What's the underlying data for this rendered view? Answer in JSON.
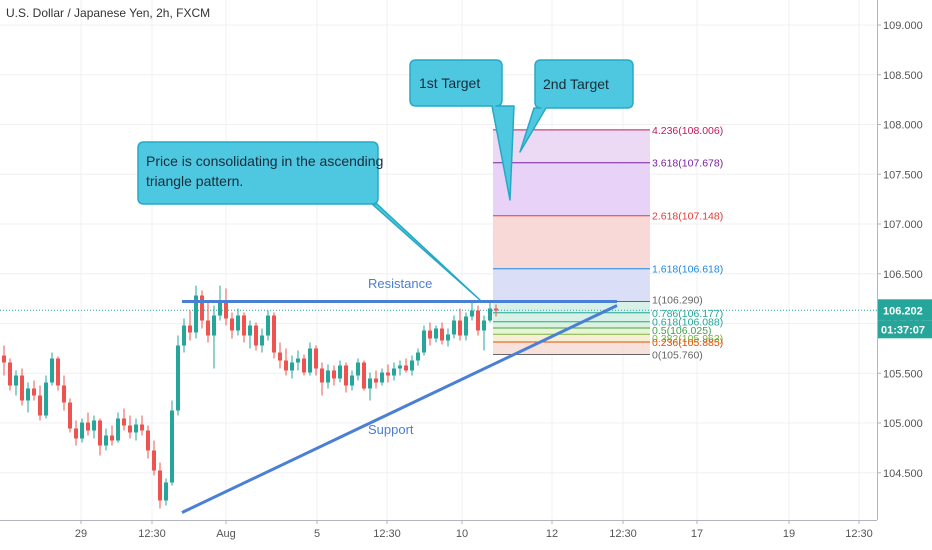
{
  "header": {
    "symbol_title": "U.S. Dollar / Japanese Yen, 2h, FXCM"
  },
  "colors": {
    "up": "#26a69a",
    "down": "#ef5350",
    "trendline": "#4a7fd6",
    "callout_fill": "#4dc8e0",
    "callout_stroke": "#26a9c4",
    "price_tag": "#26a69a",
    "price_line": "#26a69a",
    "grid": "#eef0f3",
    "axis_text": "#555555"
  },
  "chart_data": {
    "type": "candlestick",
    "title": "U.S. Dollar / Japanese Yen, 2h, FXCM",
    "ylim": [
      104.2,
      109.3
    ],
    "y_ticks": [
      "109.000",
      "108.500",
      "108.000",
      "107.500",
      "107.000",
      "106.500",
      "106.000",
      "105.500",
      "105.000",
      "104.500"
    ],
    "x_ticks": [
      "29",
      "12:30",
      "Aug",
      "5",
      "12:30",
      "10",
      "12",
      "12:30",
      "17",
      "19",
      "12:30"
    ],
    "last_price": "106.202",
    "countdown": "01:37:07",
    "grid": true,
    "candles": [
      [
        105.75,
        105.85,
        105.55,
        105.68
      ],
      [
        105.68,
        105.72,
        105.4,
        105.45
      ],
      [
        105.45,
        105.6,
        105.35,
        105.55
      ],
      [
        105.55,
        105.62,
        105.25,
        105.3
      ],
      [
        105.3,
        105.48,
        105.18,
        105.42
      ],
      [
        105.42,
        105.5,
        105.3,
        105.35
      ],
      [
        105.35,
        105.45,
        105.1,
        105.15
      ],
      [
        105.15,
        105.55,
        105.12,
        105.48
      ],
      [
        105.48,
        105.78,
        105.45,
        105.72
      ],
      [
        105.72,
        105.74,
        105.4,
        105.45
      ],
      [
        105.45,
        105.55,
        105.2,
        105.28
      ],
      [
        105.28,
        105.32,
        104.98,
        105.02
      ],
      [
        105.02,
        105.1,
        104.85,
        104.92
      ],
      [
        104.92,
        105.12,
        104.88,
        105.08
      ],
      [
        105.08,
        105.18,
        104.95,
        105.0
      ],
      [
        105.0,
        105.15,
        104.92,
        105.1
      ],
      [
        105.1,
        105.12,
        104.75,
        104.85
      ],
      [
        104.85,
        105.02,
        104.8,
        104.95
      ],
      [
        104.95,
        105.05,
        104.85,
        104.9
      ],
      [
        104.9,
        105.18,
        104.88,
        105.12
      ],
      [
        105.12,
        105.22,
        105.0,
        105.05
      ],
      [
        105.05,
        105.15,
        104.92,
        104.98
      ],
      [
        104.98,
        105.12,
        104.9,
        105.06
      ],
      [
        105.06,
        105.15,
        104.95,
        105.0
      ],
      [
        105.0,
        105.05,
        104.72,
        104.8
      ],
      [
        104.8,
        104.9,
        104.55,
        104.6
      ],
      [
        104.6,
        104.68,
        104.22,
        104.3
      ],
      [
        104.3,
        104.52,
        104.25,
        104.48
      ],
      [
        104.48,
        105.3,
        104.45,
        105.2
      ],
      [
        105.2,
        105.95,
        105.15,
        105.85
      ],
      [
        105.85,
        106.12,
        105.78,
        106.05
      ],
      [
        106.05,
        106.2,
        105.9,
        105.98
      ],
      [
        105.98,
        106.45,
        105.92,
        106.35
      ],
      [
        106.35,
        106.4,
        106.02,
        106.1
      ],
      [
        106.1,
        106.3,
        105.88,
        105.95
      ],
      [
        105.95,
        106.25,
        105.62,
        106.15
      ],
      [
        106.15,
        106.45,
        106.1,
        106.3
      ],
      [
        106.3,
        106.42,
        106.05,
        106.12
      ],
      [
        106.12,
        106.18,
        105.92,
        106.0
      ],
      [
        106.0,
        106.22,
        105.95,
        106.15
      ],
      [
        106.15,
        106.18,
        105.88,
        105.95
      ],
      [
        105.95,
        106.1,
        105.82,
        106.05
      ],
      [
        106.05,
        106.08,
        105.8,
        105.85
      ],
      [
        105.85,
        106.02,
        105.78,
        105.95
      ],
      [
        105.95,
        106.2,
        105.9,
        106.15
      ],
      [
        106.15,
        106.18,
        105.72,
        105.78
      ],
      [
        105.78,
        105.88,
        105.62,
        105.7
      ],
      [
        105.7,
        105.82,
        105.55,
        105.6
      ],
      [
        105.6,
        105.75,
        105.52,
        105.68
      ],
      [
        105.68,
        105.8,
        105.6,
        105.72
      ],
      [
        105.72,
        105.76,
        105.55,
        105.58
      ],
      [
        105.58,
        105.88,
        105.55,
        105.82
      ],
      [
        105.82,
        105.85,
        105.55,
        105.62
      ],
      [
        105.62,
        105.68,
        105.35,
        105.48
      ],
      [
        105.48,
        105.66,
        105.42,
        105.6
      ],
      [
        105.6,
        105.65,
        105.45,
        105.52
      ],
      [
        105.52,
        105.7,
        105.48,
        105.65
      ],
      [
        105.65,
        105.68,
        105.38,
        105.45
      ],
      [
        105.45,
        105.6,
        105.4,
        105.55
      ],
      [
        105.55,
        105.72,
        105.5,
        105.68
      ],
      [
        105.68,
        105.7,
        105.4,
        105.42
      ],
      [
        105.42,
        105.58,
        105.3,
        105.52
      ],
      [
        105.52,
        105.6,
        105.42,
        105.48
      ],
      [
        105.48,
        105.62,
        105.45,
        105.58
      ],
      [
        105.58,
        105.66,
        105.48,
        105.55
      ],
      [
        105.55,
        105.68,
        105.5,
        105.62
      ],
      [
        105.62,
        105.7,
        105.55,
        105.65
      ],
      [
        105.65,
        105.72,
        105.58,
        105.6
      ],
      [
        105.6,
        105.75,
        105.55,
        105.7
      ],
      [
        105.7,
        105.82,
        105.65,
        105.78
      ],
      [
        105.78,
        106.05,
        105.75,
        106.0
      ],
      [
        106.0,
        106.08,
        105.85,
        105.92
      ],
      [
        105.92,
        106.05,
        105.88,
        106.02
      ],
      [
        106.02,
        106.08,
        105.86,
        105.9
      ],
      [
        105.9,
        106.02,
        105.84,
        105.96
      ],
      [
        105.96,
        106.15,
        105.92,
        106.1
      ],
      [
        106.1,
        106.22,
        105.9,
        105.95
      ],
      [
        105.95,
        106.18,
        105.9,
        106.14
      ],
      [
        106.14,
        106.28,
        106.1,
        106.2
      ],
      [
        106.2,
        106.25,
        105.95,
        106.0
      ],
      [
        106.0,
        106.15,
        105.8,
        106.1
      ],
      [
        106.1,
        106.3,
        106.08,
        106.22
      ],
      [
        106.22,
        106.26,
        106.14,
        106.2
      ]
    ],
    "resistance": {
      "label": "Resistance",
      "y": 106.29,
      "x_start": 182,
      "x_end": 617
    },
    "support": {
      "label": "Support",
      "from": [
        182,
        104.18
      ],
      "to": [
        617,
        106.25
      ]
    },
    "fib": {
      "x_start": 493,
      "x_end": 650,
      "levels": [
        {
          "ratio": 4.236,
          "price": 108.006,
          "label": "4.236(108.006)",
          "color": "#c2185b",
          "fill": "#ead6f4"
        },
        {
          "ratio": 3.618,
          "price": 107.678,
          "label": "3.618(107.678)",
          "color": "#7b1fa2",
          "fill": "#e6cdf7"
        },
        {
          "ratio": 2.618,
          "price": 107.148,
          "label": "2.618(107.148)",
          "color": "#e53935",
          "fill": "#f8d4d4"
        },
        {
          "ratio": 1.618,
          "price": 106.618,
          "label": "1.618(106.618)",
          "color": "#1e88e5",
          "fill": "#d6dcf6"
        },
        {
          "ratio": 1,
          "price": 106.29,
          "label": "1(106.290)",
          "color": "#666666",
          "fill": "#d4efe6"
        },
        {
          "ratio": 0.786,
          "price": 106.177,
          "label": "0.786(106.177)",
          "color": "#26a69a",
          "fill": "#d3f0e4"
        },
        {
          "ratio": 0.618,
          "price": 106.088,
          "label": "0.618(106.088)",
          "color": "#26a69a",
          "fill": "#d8f1da"
        },
        {
          "ratio": 0.5,
          "price": 106.025,
          "label": "0.5(106.025)",
          "color": "#43a047",
          "fill": "#e7f3cf"
        },
        {
          "ratio": 0.382,
          "price": 105.963,
          "label": "0.382(105.963)",
          "color": "#7cb342",
          "fill": "#f4edcf"
        },
        {
          "ratio": 0.236,
          "price": 105.885,
          "label": "0.236(105.885)",
          "color": "#e65100",
          "fill": "#f6ded6"
        },
        {
          "ratio": 0,
          "price": 105.76,
          "label": "0(105.760)",
          "color": "#666666",
          "fill": "none"
        }
      ]
    },
    "annotations": [
      {
        "id": "consolidation",
        "text": [
          "Price is consolidating in the ascending",
          "triangle pattern."
        ]
      },
      {
        "id": "target1",
        "text": [
          "1st Target"
        ]
      },
      {
        "id": "target2",
        "text": [
          "2nd Target"
        ]
      }
    ]
  }
}
